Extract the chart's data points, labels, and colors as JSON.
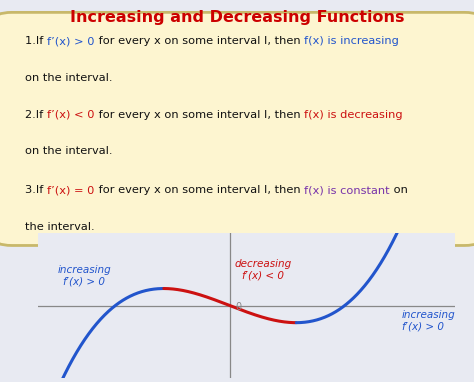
{
  "title": "Increasing and Decreasing Functions",
  "title_color": "#cc0000",
  "title_fontsize": 11.5,
  "bg_color": "#e8eaf2",
  "box_color": "#fdf5d0",
  "box_edge_color": "#c8b86a",
  "text_color": "#111111",
  "blue_color": "#2255cc",
  "red_color": "#cc1111",
  "purple_color": "#7733aa",
  "line1_parts": [
    [
      "1.If ",
      "#111111",
      false
    ],
    [
      "f’(x) > 0",
      "#2255cc",
      false
    ],
    [
      " for every x on some interval I, then ",
      "#111111",
      false
    ],
    [
      "f(x) is increasing",
      "#2255cc",
      false
    ]
  ],
  "line1b": "on the interval.",
  "line2_parts": [
    [
      "2.If ",
      "#111111",
      false
    ],
    [
      "f’(x) < 0",
      "#cc1111",
      false
    ],
    [
      " for every x on some interval I, then ",
      "#111111",
      false
    ],
    [
      "f(x) is decreasing",
      "#cc1111",
      false
    ]
  ],
  "line2b": "on the interval.",
  "line3_parts": [
    [
      "3.If ",
      "#111111",
      false
    ],
    [
      "f’(x) = 0",
      "#cc1111",
      false
    ],
    [
      " for every x on some interval I, then ",
      "#111111",
      false
    ],
    [
      "f(x) is constant",
      "#7733aa",
      false
    ],
    [
      " on",
      "#111111",
      false
    ]
  ],
  "line3b": "the interval.",
  "label_inc1": "increasing",
  "label_fp1": "f′(x) > 0",
  "label_dec": "decreasing",
  "label_fp2": "f′(x) < 0",
  "label_inc2": "increasing",
  "label_fp3": "f′(x) > 0",
  "graph_blue": "#2255cc",
  "graph_red": "#cc1111",
  "axis_color": "#888888"
}
